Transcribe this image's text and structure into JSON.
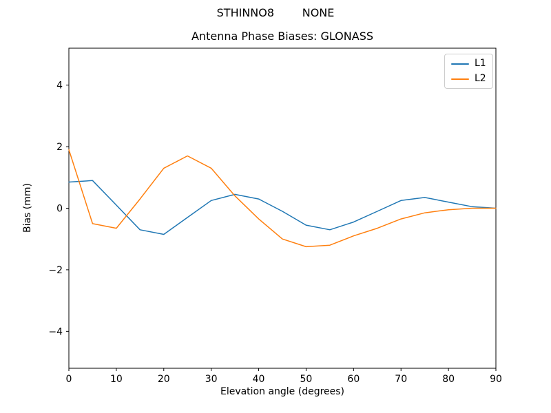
{
  "figure": {
    "suptitle": "STHINNO8        NONE"
  },
  "chart_data": {
    "type": "line",
    "title": "Antenna Phase Biases: GLONASS",
    "xlabel": "Elevation angle (degrees)",
    "ylabel": "Bias (mm)",
    "x": [
      0,
      5,
      10,
      15,
      20,
      25,
      30,
      35,
      40,
      45,
      50,
      55,
      60,
      65,
      70,
      75,
      80,
      85,
      90
    ],
    "series": [
      {
        "name": "L1",
        "color": "#1f77b4",
        "values": [
          0.85,
          0.9,
          0.1,
          -0.7,
          -0.85,
          -0.3,
          0.25,
          0.45,
          0.3,
          -0.1,
          -0.55,
          -0.7,
          -0.45,
          -0.1,
          0.25,
          0.35,
          0.2,
          0.05,
          0.0
        ]
      },
      {
        "name": "L2",
        "color": "#ff7f0e",
        "values": [
          1.9,
          -0.5,
          -0.65,
          0.3,
          1.3,
          1.7,
          1.3,
          0.4,
          -0.35,
          -1.0,
          -1.25,
          -1.2,
          -0.9,
          -0.65,
          -0.35,
          -0.15,
          -0.05,
          0.0,
          0.0
        ]
      }
    ],
    "xlim": [
      0,
      90
    ],
    "ylim": [
      -5.2,
      5.2
    ],
    "xticks": [
      0,
      10,
      20,
      30,
      40,
      50,
      60,
      70,
      80,
      90
    ],
    "yticks": [
      -4,
      -2,
      0,
      2,
      4
    ],
    "grid": false,
    "legend_position": "upper right",
    "line_width": 1.5,
    "frame_color": "#000000"
  }
}
